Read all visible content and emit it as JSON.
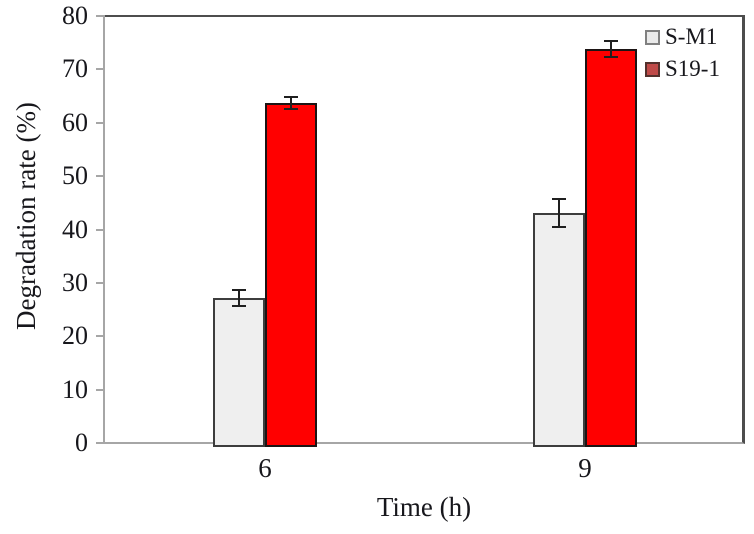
{
  "chart_data": {
    "type": "bar",
    "title": "",
    "xlabel": "Time (h)",
    "ylabel": "Degradation rate (%)",
    "categories": [
      "6",
      "9"
    ],
    "series": [
      {
        "name": "S-M1",
        "values": [
          27.2,
          43.1
        ],
        "errors": [
          1.5,
          2.6
        ],
        "fill": "#efefef",
        "stroke": "#3d3d3d",
        "legend_fill": "#eaeaea",
        "legend_stroke": "#808080"
      },
      {
        "name": "S19-1",
        "values": [
          63.7,
          73.8
        ],
        "errors": [
          1.2,
          1.5
        ],
        "fill": "#ff0000",
        "stroke": "#1c1414",
        "legend_fill": "#bf4a48",
        "legend_stroke": "#53302c"
      }
    ],
    "ylim": [
      0,
      80
    ],
    "ytick_step": 10,
    "yticks": [
      0,
      10,
      20,
      30,
      40,
      50,
      60,
      70,
      80
    ],
    "grid": false,
    "legend_position": "top-right-inside",
    "error_bar_color": "#1f1f1f"
  }
}
